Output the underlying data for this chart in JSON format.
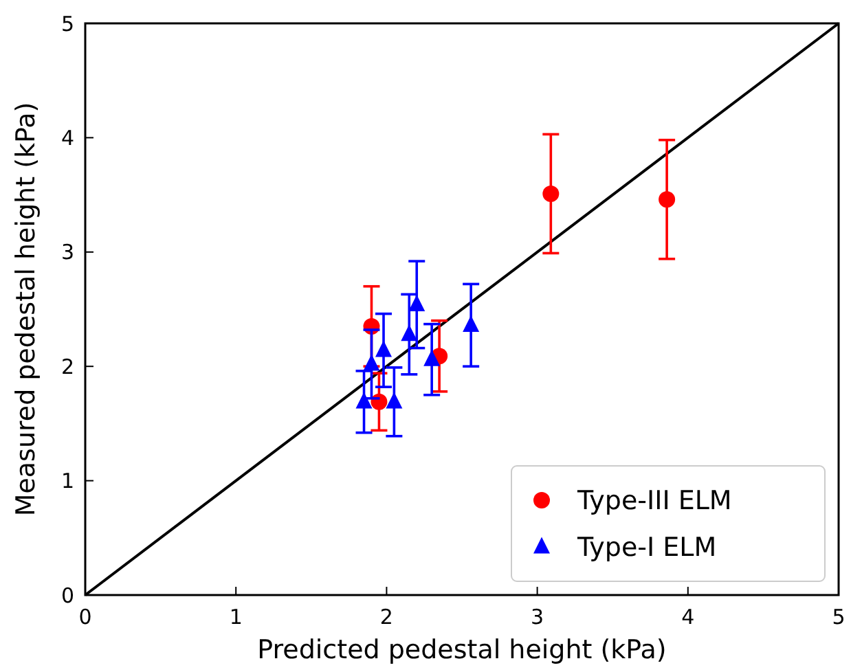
{
  "chart_data": {
    "type": "scatter",
    "xlabel": "Predicted pedestal height (kPa)",
    "ylabel": "Measured pedestal height (kPa)",
    "xlim": [
      0,
      5
    ],
    "ylim": [
      0,
      5
    ],
    "xticks": [
      0,
      1,
      2,
      3,
      4,
      5
    ],
    "yticks": [
      0,
      1,
      2,
      3,
      4,
      5
    ],
    "grid": false,
    "legend": "bottom right",
    "series": [
      {
        "type": "line",
        "color": "#000000",
        "x": [
          0,
          5
        ],
        "values": [
          0,
          5
        ],
        "line_style": "solid"
      },
      {
        "name": "Type-III ELM",
        "color": "#ff0000",
        "marker": "circle",
        "x": [
          1.9,
          1.95,
          2.35,
          3.09,
          3.86
        ],
        "values": [
          2.35,
          1.69,
          2.09,
          3.51,
          3.46
        ],
        "errors": [
          0.35,
          0.25,
          0.31,
          0.52,
          0.52
        ]
      },
      {
        "name": "Type-I ELM",
        "color": "#0000ff",
        "marker": "triangle",
        "x": [
          1.85,
          1.9,
          1.98,
          2.05,
          2.15,
          2.2,
          2.3,
          2.56
        ],
        "values": [
          1.69,
          2.02,
          2.14,
          1.69,
          2.28,
          2.54,
          2.06,
          2.36
        ],
        "errors": [
          0.27,
          0.3,
          0.32,
          0.3,
          0.35,
          0.38,
          0.31,
          0.36
        ]
      }
    ]
  }
}
